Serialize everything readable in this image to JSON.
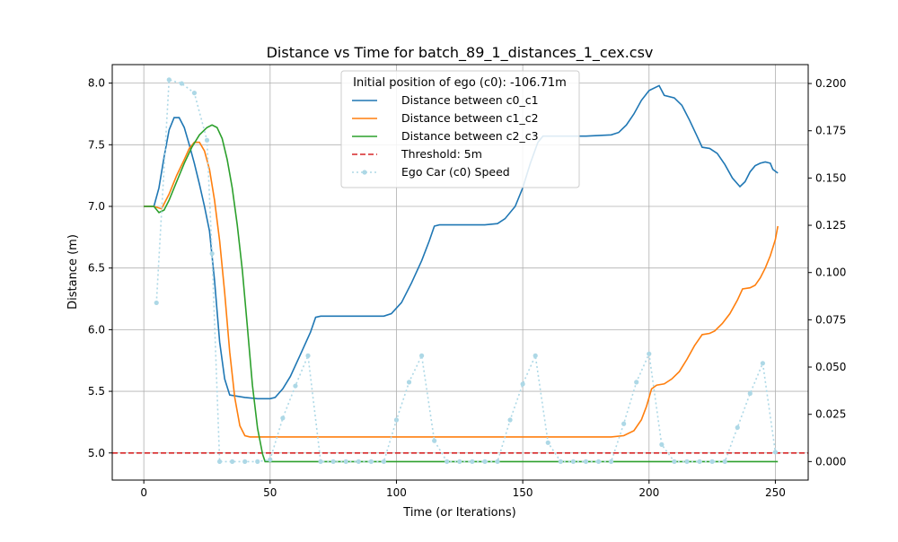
{
  "chart_data": {
    "type": "line",
    "title": "Distance vs Time for batch_89_1_distances_1_cex.csv",
    "xlabel": "Time (or Iterations)",
    "ylabel": "Distance (m)",
    "xlim": [
      -12.5,
      263
    ],
    "ylim": [
      4.78,
      8.15
    ],
    "y2lim": [
      -0.0098,
      0.21
    ],
    "grid": true,
    "legend_position": "top-center",
    "legend_title": "Initial position of ego (c0): -106.71m",
    "x_ticks": [
      "0",
      "50",
      "100",
      "150",
      "200",
      "250"
    ],
    "y_ticks": [
      "5.0",
      "5.5",
      "6.0",
      "6.5",
      "7.0",
      "7.5",
      "8.0"
    ],
    "y2_ticks": [
      "0.000",
      "0.025",
      "0.050",
      "0.075",
      "0.100",
      "0.125",
      "0.150",
      "0.175",
      "0.200"
    ],
    "threshold": {
      "name": "Threshold: 5m",
      "value": 5.0,
      "color": "#d62728"
    },
    "series": [
      {
        "name": "Distance between c0_c1",
        "color": "#1f77b4",
        "axis": "left",
        "style": "solid",
        "points": [
          [
            0,
            7.0
          ],
          [
            4,
            7.0
          ],
          [
            6,
            7.15
          ],
          [
            8,
            7.4
          ],
          [
            10,
            7.62
          ],
          [
            12,
            7.72
          ],
          [
            14,
            7.72
          ],
          [
            16,
            7.64
          ],
          [
            18,
            7.5
          ],
          [
            20,
            7.35
          ],
          [
            22,
            7.18
          ],
          [
            24,
            7.0
          ],
          [
            26,
            6.8
          ],
          [
            28,
            6.4
          ],
          [
            30,
            5.9
          ],
          [
            32,
            5.6
          ],
          [
            34,
            5.47
          ],
          [
            40,
            5.45
          ],
          [
            45,
            5.44
          ],
          [
            50,
            5.44
          ],
          [
            52,
            5.45
          ],
          [
            55,
            5.52
          ],
          [
            58,
            5.62
          ],
          [
            62,
            5.8
          ],
          [
            66,
            5.98
          ],
          [
            68,
            6.1
          ],
          [
            70,
            6.11
          ],
          [
            80,
            6.11
          ],
          [
            90,
            6.11
          ],
          [
            95,
            6.11
          ],
          [
            98,
            6.13
          ],
          [
            102,
            6.22
          ],
          [
            106,
            6.38
          ],
          [
            110,
            6.56
          ],
          [
            113,
            6.72
          ],
          [
            115,
            6.84
          ],
          [
            117,
            6.85
          ],
          [
            125,
            6.85
          ],
          [
            135,
            6.85
          ],
          [
            140,
            6.86
          ],
          [
            143,
            6.9
          ],
          [
            147,
            7.0
          ],
          [
            150,
            7.15
          ],
          [
            153,
            7.35
          ],
          [
            156,
            7.52
          ],
          [
            158,
            7.57
          ],
          [
            165,
            7.57
          ],
          [
            175,
            7.57
          ],
          [
            185,
            7.58
          ],
          [
            188,
            7.6
          ],
          [
            191,
            7.66
          ],
          [
            194,
            7.75
          ],
          [
            197,
            7.86
          ],
          [
            200,
            7.94
          ],
          [
            204,
            7.98
          ],
          [
            206,
            7.9
          ],
          [
            210,
            7.88
          ],
          [
            213,
            7.82
          ],
          [
            216,
            7.7
          ],
          [
            219,
            7.57
          ],
          [
            221,
            7.48
          ],
          [
            224,
            7.47
          ],
          [
            227,
            7.43
          ],
          [
            230,
            7.34
          ],
          [
            233,
            7.23
          ],
          [
            236,
            7.16
          ],
          [
            238,
            7.2
          ],
          [
            240,
            7.28
          ],
          [
            242,
            7.33
          ],
          [
            244,
            7.35
          ],
          [
            246,
            7.36
          ],
          [
            248,
            7.35
          ],
          [
            249,
            7.3
          ],
          [
            251,
            7.27
          ]
        ]
      },
      {
        "name": "Distance between c1_c2",
        "color": "#ff7f0e",
        "axis": "left",
        "style": "solid",
        "points": [
          [
            0,
            7.0
          ],
          [
            4,
            7.0
          ],
          [
            7,
            6.98
          ],
          [
            10,
            7.1
          ],
          [
            13,
            7.25
          ],
          [
            16,
            7.38
          ],
          [
            18,
            7.47
          ],
          [
            20,
            7.52
          ],
          [
            22,
            7.52
          ],
          [
            24,
            7.45
          ],
          [
            26,
            7.3
          ],
          [
            28,
            7.05
          ],
          [
            30,
            6.72
          ],
          [
            32,
            6.3
          ],
          [
            34,
            5.82
          ],
          [
            36,
            5.45
          ],
          [
            38,
            5.22
          ],
          [
            40,
            5.14
          ],
          [
            42,
            5.13
          ],
          [
            60,
            5.13
          ],
          [
            100,
            5.13
          ],
          [
            150,
            5.13
          ],
          [
            185,
            5.13
          ],
          [
            190,
            5.14
          ],
          [
            194,
            5.18
          ],
          [
            197,
            5.27
          ],
          [
            199,
            5.38
          ],
          [
            201,
            5.52
          ],
          [
            203,
            5.55
          ],
          [
            206,
            5.56
          ],
          [
            209,
            5.6
          ],
          [
            212,
            5.66
          ],
          [
            215,
            5.76
          ],
          [
            218,
            5.87
          ],
          [
            221,
            5.96
          ],
          [
            224,
            5.97
          ],
          [
            226,
            5.99
          ],
          [
            229,
            6.05
          ],
          [
            232,
            6.13
          ],
          [
            235,
            6.24
          ],
          [
            237,
            6.33
          ],
          [
            240,
            6.34
          ],
          [
            242,
            6.36
          ],
          [
            244,
            6.42
          ],
          [
            246,
            6.5
          ],
          [
            248,
            6.6
          ],
          [
            250,
            6.73
          ],
          [
            251,
            6.84
          ]
        ]
      },
      {
        "name": "Distance between c2_c3",
        "color": "#2ca02c",
        "axis": "left",
        "style": "solid",
        "points": [
          [
            0,
            7.0
          ],
          [
            4,
            7.0
          ],
          [
            6,
            6.95
          ],
          [
            8,
            6.97
          ],
          [
            10,
            7.05
          ],
          [
            13,
            7.2
          ],
          [
            16,
            7.35
          ],
          [
            19,
            7.48
          ],
          [
            22,
            7.58
          ],
          [
            25,
            7.64
          ],
          [
            27,
            7.66
          ],
          [
            29,
            7.64
          ],
          [
            31,
            7.55
          ],
          [
            33,
            7.38
          ],
          [
            35,
            7.15
          ],
          [
            37,
            6.85
          ],
          [
            39,
            6.48
          ],
          [
            41,
            6.02
          ],
          [
            43,
            5.55
          ],
          [
            45,
            5.2
          ],
          [
            47,
            4.99
          ],
          [
            48,
            4.93
          ],
          [
            50,
            4.93
          ],
          [
            100,
            4.93
          ],
          [
            150,
            4.93
          ],
          [
            200,
            4.93
          ],
          [
            250,
            4.93
          ],
          [
            251,
            4.93
          ]
        ]
      },
      {
        "name": "Ego Car (c0) Speed",
        "color": "#add8e6",
        "axis": "right",
        "style": "dotted-markers",
        "points": [
          [
            5,
            0.084
          ],
          [
            10,
            0.202
          ],
          [
            15,
            0.2
          ],
          [
            20,
            0.195
          ],
          [
            25,
            0.17
          ],
          [
            27,
            0.11
          ],
          [
            30,
            0.0
          ],
          [
            35,
            0.0
          ],
          [
            40,
            0.0
          ],
          [
            45,
            0.0
          ],
          [
            50,
            0.001
          ],
          [
            55,
            0.023
          ],
          [
            60,
            0.04
          ],
          [
            65,
            0.056
          ],
          [
            70,
            0.0
          ],
          [
            75,
            0.0
          ],
          [
            80,
            0.0
          ],
          [
            85,
            0.0
          ],
          [
            90,
            0.0
          ],
          [
            95,
            0.0
          ],
          [
            100,
            0.022
          ],
          [
            105,
            0.042
          ],
          [
            110,
            0.056
          ],
          [
            115,
            0.011
          ],
          [
            120,
            0.0
          ],
          [
            125,
            0.0
          ],
          [
            130,
            0.0
          ],
          [
            135,
            0.0
          ],
          [
            140,
            0.0
          ],
          [
            145,
            0.022
          ],
          [
            150,
            0.041
          ],
          [
            155,
            0.056
          ],
          [
            160,
            0.01
          ],
          [
            165,
            0.0
          ],
          [
            170,
            0.0
          ],
          [
            175,
            0.0
          ],
          [
            180,
            0.0
          ],
          [
            185,
            0.0
          ],
          [
            190,
            0.02
          ],
          [
            195,
            0.042
          ],
          [
            200,
            0.057
          ],
          [
            205,
            0.009
          ],
          [
            210,
            0.0
          ],
          [
            215,
            0.0
          ],
          [
            220,
            0.0
          ],
          [
            225,
            0.0
          ],
          [
            230,
            0.0
          ],
          [
            235,
            0.018
          ],
          [
            240,
            0.036
          ],
          [
            245,
            0.052
          ],
          [
            250,
            0.005
          ]
        ]
      }
    ]
  }
}
